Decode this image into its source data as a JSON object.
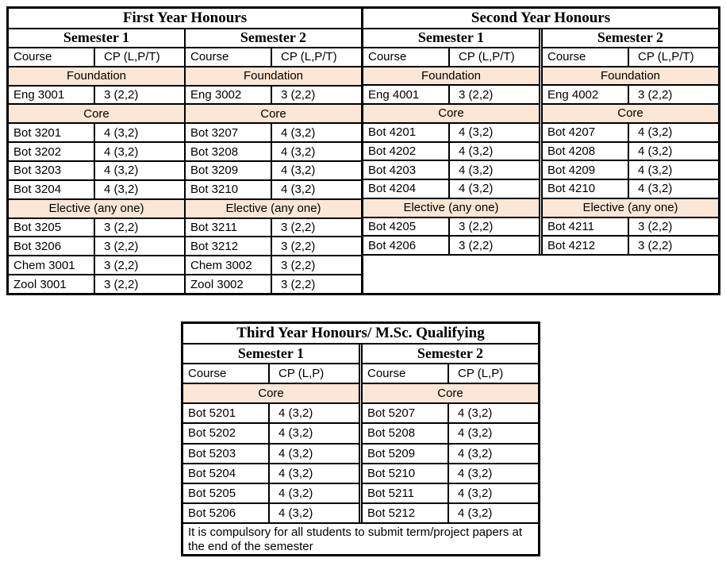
{
  "theme": {
    "page_background": "#ffffff",
    "border_color": "#000000",
    "text_color": "#000000",
    "banner_color": "#fce6d5"
  },
  "tables": [
    {
      "title": "First Year Honours",
      "divider": "single",
      "filler": false,
      "note": null,
      "semesters": [
        {
          "label": "Semester 1",
          "course_header": "Course",
          "cp_header": "CP (L,P/T)",
          "rows": [
            {
              "banner": "Foundation"
            },
            {
              "course": "Eng 3001",
              "cp": "3 (2,2)"
            },
            {
              "banner": "Core"
            },
            {
              "course": "Bot 3201",
              "cp": "4 (3,2)"
            },
            {
              "course": "Bot 3202",
              "cp": "4 (3,2)"
            },
            {
              "course": "Bot 3203",
              "cp": "4 (3,2)"
            },
            {
              "course": "Bot 3204",
              "cp": "4 (3,2)"
            },
            {
              "banner": "Elective (any one)"
            },
            {
              "course": "Bot 3205",
              "cp": "3 (2,2)"
            },
            {
              "course": "Bot 3206",
              "cp": "3 (2,2)"
            },
            {
              "course": "Chem 3001",
              "cp": "3 (2,2)"
            },
            {
              "course": "Zool 3001",
              "cp": "3 (2,2)"
            }
          ]
        },
        {
          "label": "Semester 2",
          "course_header": "Course",
          "cp_header": "CP (L,P/T)",
          "rows": [
            {
              "banner": "Foundation"
            },
            {
              "course": "Eng 3002",
              "cp": "3 (2,2)"
            },
            {
              "banner": "Core"
            },
            {
              "course": "Bot 3207",
              "cp": "4 (3,2)"
            },
            {
              "course": "Bot 3208",
              "cp": "4 (3,2)"
            },
            {
              "course": "Bot 3209",
              "cp": "4 (3,2)"
            },
            {
              "course": "Bot 3210",
              "cp": "4 (3,2)"
            },
            {
              "banner": "Elective (any one)"
            },
            {
              "course": "Bot 3211",
              "cp": "3 (2,2)"
            },
            {
              "course": "Bot 3212",
              "cp": "3 (2,2)"
            },
            {
              "course": "Chem 3002",
              "cp": "3 (2,2)"
            },
            {
              "course": "Zool 3002",
              "cp": "3 (2,2)"
            }
          ]
        }
      ]
    },
    {
      "title": "Second Year Honours",
      "divider": "double",
      "filler": true,
      "note": null,
      "semesters": [
        {
          "label": "Semester 1",
          "course_header": "Course",
          "cp_header": "CP (L,P/T)",
          "rows": [
            {
              "banner": "Foundation"
            },
            {
              "course": "Eng 4001",
              "cp": "3 (2,2)"
            },
            {
              "banner": "Core"
            },
            {
              "course": "Bot 4201",
              "cp": "4 (3,2)"
            },
            {
              "course": "Bot 4202",
              "cp": "4 (3,2)"
            },
            {
              "course": "Bot 4203",
              "cp": "4 (3,2)"
            },
            {
              "course": "Bot 4204",
              "cp": "4 (3,2)"
            },
            {
              "banner": "Elective (any one)"
            },
            {
              "course": "Bot 4205",
              "cp": "3 (2,2)"
            },
            {
              "course": "Bot 4206",
              "cp": "3 (2,2)"
            }
          ]
        },
        {
          "label": "Semester 2",
          "course_header": "Course",
          "cp_header": "CP (L,P/T)",
          "rows": [
            {
              "banner": "Foundation"
            },
            {
              "course": "Eng 4002",
              "cp": "3 (2,2)"
            },
            {
              "banner": "Core"
            },
            {
              "course": "Bot 4207",
              "cp": "4 (3,2)"
            },
            {
              "course": "Bot 4208",
              "cp": "4 (3,2)"
            },
            {
              "course": "Bot 4209",
              "cp": "4 (3,2)"
            },
            {
              "course": "Bot 4210",
              "cp": "4 (3,2)"
            },
            {
              "banner": "Elective (any one)"
            },
            {
              "course": "Bot 4211",
              "cp": "3 (2,2)"
            },
            {
              "course": "Bot 4212",
              "cp": "3 (2,2)"
            }
          ]
        }
      ]
    },
    {
      "title": "Third Year Honours/ M.Sc. Qualifying",
      "divider": "double",
      "filler": false,
      "note": "It is compulsory for all students to submit term/project papers at the end of the semester",
      "semesters": [
        {
          "label": "Semester 1",
          "course_header": "Course",
          "cp_header": "CP (L,P)",
          "rows": [
            {
              "banner": "Core"
            },
            {
              "course": "Bot 5201",
              "cp": "4 (3,2)"
            },
            {
              "course": "Bot 5202",
              "cp": "4 (3,2)"
            },
            {
              "course": "Bot 5203",
              "cp": "4 (3,2)"
            },
            {
              "course": "Bot 5204",
              "cp": "4 (3,2)"
            },
            {
              "course": "Bot 5205",
              "cp": "4 (3,2)"
            },
            {
              "course": "Bot 5206",
              "cp": "4 (3,2)"
            }
          ]
        },
        {
          "label": "Semester 2",
          "course_header": "Course",
          "cp_header": "CP (L,P)",
          "rows": [
            {
              "banner": "Core"
            },
            {
              "course": "Bot 5207",
              "cp": "4 (3,2)"
            },
            {
              "course": "Bot 5208",
              "cp": "4 (3,2)"
            },
            {
              "course": "Bot 5209",
              "cp": "4 (3,2)"
            },
            {
              "course": "Bot 5210",
              "cp": "4 (3,2)"
            },
            {
              "course": "Bot 5211",
              "cp": "4 (3,2)"
            },
            {
              "course": "Bot 5212",
              "cp": "4 (3,2)"
            }
          ]
        }
      ]
    }
  ]
}
